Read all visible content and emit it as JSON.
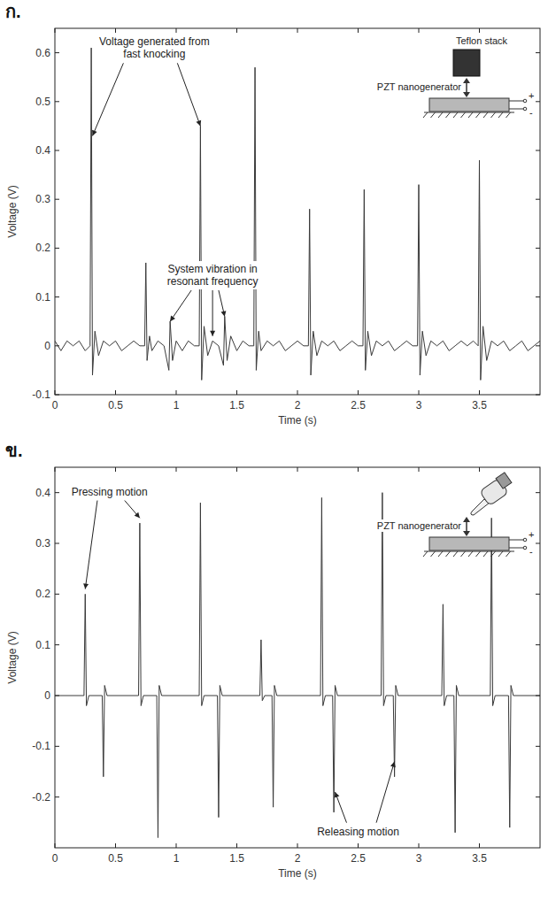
{
  "chart_data": [
    {
      "type": "line",
      "title": "ก.",
      "x_label": "Time (s)",
      "y_label": "Voltage (V)",
      "color": "#3a3a3a",
      "xlim": [
        0,
        4
      ],
      "ylim": [
        -0.1,
        0.65
      ],
      "xticks": [
        0,
        0.5,
        1,
        1.5,
        2,
        2.5,
        3,
        3.5
      ],
      "yticks": [
        -0.1,
        0,
        0.1,
        0.2,
        0.3,
        0.4,
        0.5,
        0.6
      ],
      "grid": false,
      "x": [
        0,
        0.05,
        0.1,
        0.15,
        0.2,
        0.25,
        0.29,
        0.3,
        0.31,
        0.33,
        0.36,
        0.4,
        0.45,
        0.5,
        0.55,
        0.6,
        0.65,
        0.7,
        0.74,
        0.75,
        0.76,
        0.78,
        0.8,
        0.85,
        0.9,
        0.94,
        0.95,
        0.97,
        1.0,
        1.05,
        1.1,
        1.15,
        1.19,
        1.2,
        1.21,
        1.23,
        1.26,
        1.3,
        1.35,
        1.39,
        1.4,
        1.42,
        1.45,
        1.5,
        1.55,
        1.6,
        1.64,
        1.65,
        1.66,
        1.68,
        1.7,
        1.75,
        1.8,
        1.85,
        1.9,
        1.95,
        2.0,
        2.05,
        2.09,
        2.1,
        2.11,
        2.13,
        2.16,
        2.2,
        2.25,
        2.3,
        2.35,
        2.4,
        2.45,
        2.5,
        2.54,
        2.55,
        2.56,
        2.58,
        2.61,
        2.65,
        2.7,
        2.75,
        2.8,
        2.85,
        2.9,
        2.95,
        2.99,
        3.0,
        3.01,
        3.03,
        3.06,
        3.1,
        3.15,
        3.2,
        3.25,
        3.3,
        3.35,
        3.4,
        3.45,
        3.49,
        3.5,
        3.51,
        3.53,
        3.56,
        3.6,
        3.65,
        3.7,
        3.75,
        3.8,
        3.85,
        3.9,
        3.95,
        4.0
      ],
      "values": [
        0.01,
        -0.01,
        0.01,
        0,
        0.01,
        -0.01,
        0,
        0.61,
        -0.06,
        0.03,
        -0.02,
        0.01,
        0,
        0.01,
        -0.01,
        0,
        0.01,
        0,
        0,
        0.17,
        -0.03,
        0.02,
        -0.01,
        0.01,
        0,
        -0.05,
        0.05,
        -0.03,
        0.01,
        -0.01,
        0.01,
        0,
        0,
        0.45,
        -0.07,
        0.04,
        -0.02,
        0.01,
        0,
        -0.04,
        0.06,
        -0.03,
        0.02,
        -0.01,
        0.01,
        0,
        0,
        0.57,
        -0.05,
        0.03,
        -0.01,
        0.01,
        0,
        0.01,
        -0.01,
        0,
        0.01,
        0,
        0,
        0.28,
        -0.06,
        0.03,
        -0.02,
        0.01,
        0,
        0.01,
        -0.01,
        0,
        0.01,
        0,
        0,
        0.32,
        -0.05,
        0.03,
        -0.02,
        0.01,
        0,
        0.01,
        -0.01,
        0,
        0.01,
        0,
        0,
        0.33,
        -0.06,
        0.03,
        -0.02,
        0.01,
        0,
        0.01,
        -0.01,
        0,
        0.01,
        0,
        0.01,
        0,
        0.38,
        -0.07,
        0.04,
        -0.03,
        0.01,
        0,
        0.01,
        -0.01,
        0,
        0.01,
        -0.01,
        0,
        0.01
      ],
      "annotations": [
        {
          "lines": [
            "Voltage generated from",
            "fast knocking"
          ],
          "x": 0.82,
          "y": 0.615,
          "arrows": [
            {
              "x": 0.31,
              "y": 0.43
            },
            {
              "x": 1.2,
              "y": 0.45
            }
          ]
        },
        {
          "lines": [
            "System vibration in",
            "resonant frequency"
          ],
          "x": 1.3,
          "y": 0.15,
          "arrows": [
            {
              "x": 0.95,
              "y": 0.05
            },
            {
              "x": 1.3,
              "y": 0.02
            },
            {
              "x": 1.4,
              "y": 0.06
            }
          ]
        }
      ],
      "inset": {
        "pusher": "Teflon stack",
        "device": "PZT nanogenerator",
        "plus": "+",
        "minus": "-"
      }
    },
    {
      "type": "line",
      "title": "ข.",
      "x_label": "Time (s)",
      "y_label": "Voltage (V)",
      "color": "#3a3a3a",
      "xlim": [
        0,
        4
      ],
      "ylim": [
        -0.3,
        0.45
      ],
      "xticks": [
        0,
        0.5,
        1,
        1.5,
        2,
        2.5,
        3,
        3.5
      ],
      "yticks": [
        -0.2,
        -0.1,
        0,
        0.1,
        0.2,
        0.3,
        0.4
      ],
      "grid": false,
      "x": [
        0,
        0.24,
        0.25,
        0.26,
        0.28,
        0.39,
        0.4,
        0.41,
        0.43,
        0.69,
        0.7,
        0.71,
        0.73,
        0.84,
        0.85,
        0.86,
        0.88,
        1.19,
        1.2,
        1.21,
        1.23,
        1.34,
        1.35,
        1.36,
        1.38,
        1.69,
        1.7,
        1.71,
        1.73,
        1.79,
        1.8,
        1.81,
        1.83,
        2.19,
        2.2,
        2.21,
        2.23,
        2.29,
        2.3,
        2.31,
        2.33,
        2.69,
        2.7,
        2.71,
        2.73,
        2.79,
        2.8,
        2.81,
        2.83,
        3.19,
        3.2,
        3.21,
        3.23,
        3.29,
        3.3,
        3.31,
        3.33,
        3.59,
        3.6,
        3.61,
        3.63,
        3.74,
        3.75,
        3.76,
        3.78,
        4.0
      ],
      "values": [
        0,
        0,
        0.2,
        -0.02,
        0,
        0,
        -0.16,
        0.02,
        0,
        0,
        0.34,
        -0.02,
        0,
        0,
        -0.28,
        0.02,
        0,
        0,
        0.38,
        -0.02,
        0,
        0,
        -0.24,
        0.02,
        0,
        0,
        0.11,
        -0.01,
        0,
        0,
        -0.22,
        0.02,
        0,
        0,
        0.39,
        -0.02,
        0,
        0,
        -0.23,
        0.02,
        0,
        0,
        0.4,
        -0.02,
        0,
        0,
        -0.16,
        0.02,
        0,
        0,
        0.18,
        -0.02,
        0,
        0,
        -0.27,
        0.02,
        0,
        0,
        0.35,
        -0.02,
        0,
        0,
        -0.26,
        0.02,
        0,
        0
      ],
      "annotations": [
        {
          "lines": [
            "Pressing motion"
          ],
          "x": 0.45,
          "y": 0.395,
          "arrows": [
            {
              "x": 0.25,
              "y": 0.21
            },
            {
              "x": 0.7,
              "y": 0.35
            }
          ]
        },
        {
          "lines": [
            "Releasing motion"
          ],
          "x": 2.5,
          "y": -0.275,
          "arrows": [
            {
              "x": 2.31,
              "y": -0.19
            },
            {
              "x": 2.8,
              "y": -0.13
            }
          ]
        }
      ],
      "inset": {
        "device": "PZT nanogenerator",
        "plus": "+",
        "minus": "-"
      }
    }
  ]
}
